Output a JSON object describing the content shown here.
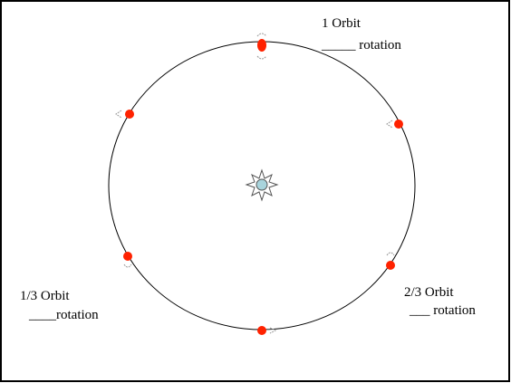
{
  "labels": [
    {
      "lines": [
        "1 Orbit",
        "_____ rotation"
      ]
    },
    {
      "lines": [
        "1/3 Orbit",
        "____rotation"
      ]
    },
    {
      "lines": [
        "2/3 Orbit",
        "___ rotation"
      ]
    }
  ]
}
